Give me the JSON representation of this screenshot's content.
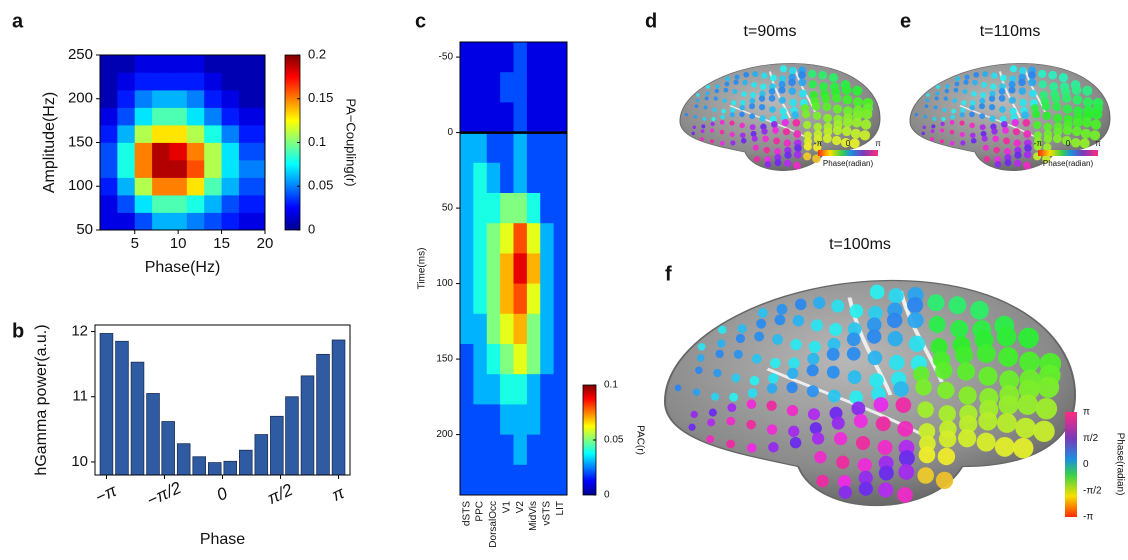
{
  "chart_data": [
    {
      "type": "heatmap",
      "label": "a",
      "xlabel": "Phase(Hz)",
      "ylabel": "Amplitude(Hz)",
      "xlim": [
        1,
        20
      ],
      "ylim": [
        50,
        250
      ],
      "xticks": [
        5,
        10,
        15,
        20
      ],
      "yticks": [
        50,
        100,
        150,
        200,
        250
      ],
      "xbins": [
        1,
        3,
        5,
        7,
        9,
        11,
        13,
        15,
        17,
        20
      ],
      "ybins": [
        50,
        70,
        90,
        110,
        130,
        150,
        170,
        190,
        210,
        230,
        250
      ],
      "values": [
        [
          0.02,
          0.02,
          0.04,
          0.06,
          0.06,
          0.05,
          0.04,
          0.03,
          0.02
        ],
        [
          0.02,
          0.04,
          0.07,
          0.09,
          0.09,
          0.08,
          0.06,
          0.04,
          0.03
        ],
        [
          0.03,
          0.06,
          0.11,
          0.15,
          0.15,
          0.13,
          0.09,
          0.06,
          0.04
        ],
        [
          0.04,
          0.08,
          0.15,
          0.19,
          0.19,
          0.16,
          0.11,
          0.07,
          0.05
        ],
        [
          0.04,
          0.08,
          0.15,
          0.19,
          0.18,
          0.15,
          0.11,
          0.07,
          0.04
        ],
        [
          0.03,
          0.06,
          0.11,
          0.13,
          0.13,
          0.11,
          0.08,
          0.05,
          0.03
        ],
        [
          0.02,
          0.04,
          0.07,
          0.09,
          0.09,
          0.07,
          0.05,
          0.03,
          0.02
        ],
        [
          0.01,
          0.03,
          0.05,
          0.06,
          0.06,
          0.05,
          0.03,
          0.02,
          0.01
        ],
        [
          0.01,
          0.02,
          0.03,
          0.03,
          0.03,
          0.03,
          0.02,
          0.01,
          0.01
        ],
        [
          0.01,
          0.01,
          0.02,
          0.02,
          0.02,
          0.02,
          0.01,
          0.01,
          0.01
        ]
      ],
      "colorbar": {
        "label": "PA−Coupling(r)",
        "lim": [
          0,
          0.2
        ],
        "ticks": [
          0,
          0.05,
          0.1,
          0.15,
          0.2
        ]
      }
    },
    {
      "type": "bar",
      "label": "b",
      "xlabel": "Phase",
      "ylabel": "hGamma power(a.u.)",
      "color": "#2f5ba3",
      "x": [
        -3.14,
        -2.72,
        -2.3,
        -1.88,
        -1.47,
        -1.05,
        -0.63,
        -0.21,
        0.21,
        0.63,
        1.05,
        1.47,
        1.88,
        2.3,
        2.72,
        3.14
      ],
      "values": [
        11.97,
        11.85,
        11.53,
        11.05,
        10.62,
        10.28,
        10.08,
        9.99,
        10.01,
        10.18,
        10.42,
        10.7,
        11.0,
        11.32,
        11.65,
        11.87
      ],
      "xlim": [
        -3.45,
        3.45
      ],
      "ylim": [
        9.8,
        12.1
      ],
      "yticks": [
        10,
        11,
        12
      ],
      "xticks": [
        {
          "value": -3.14,
          "label": "−π"
        },
        {
          "value": -1.57,
          "label": "−π/2"
        },
        {
          "value": 0,
          "label": "0"
        },
        {
          "value": 1.57,
          "label": "π/2"
        },
        {
          "value": 3.14,
          "label": "π"
        }
      ]
    },
    {
      "type": "heatmap",
      "label": "c",
      "ylabel": "Time(ms)",
      "yaxis_reversed": true,
      "categories": [
        "dSTS",
        "PPC",
        "DorsalOcc",
        "V1",
        "V2",
        "MidVis",
        "vSTS",
        "LIT"
      ],
      "ylim": [
        -60,
        240
      ],
      "yticks": [
        -50,
        0,
        50,
        100,
        150,
        200
      ],
      "ybins": [
        -60,
        -40,
        -20,
        0,
        20,
        40,
        60,
        80,
        100,
        120,
        140,
        160,
        180,
        200,
        220,
        240
      ],
      "values": [
        [
          0.01,
          0.01,
          0.01,
          0.01,
          0.02,
          0.01,
          0.01,
          0.01
        ],
        [
          0.01,
          0.01,
          0.01,
          0.02,
          0.02,
          0.01,
          0.01,
          0.01
        ],
        [
          0.01,
          0.01,
          0.01,
          0.01,
          0.02,
          0.01,
          0.01,
          0.01
        ],
        [
          0.03,
          0.03,
          0.02,
          0.02,
          0.03,
          0.02,
          0.02,
          0.02
        ],
        [
          0.03,
          0.04,
          0.03,
          0.02,
          0.03,
          0.02,
          0.02,
          0.02
        ],
        [
          0.03,
          0.04,
          0.04,
          0.05,
          0.05,
          0.04,
          0.02,
          0.02
        ],
        [
          0.03,
          0.04,
          0.05,
          0.06,
          0.08,
          0.06,
          0.03,
          0.02
        ],
        [
          0.03,
          0.04,
          0.05,
          0.07,
          0.09,
          0.07,
          0.03,
          0.02
        ],
        [
          0.03,
          0.04,
          0.05,
          0.07,
          0.08,
          0.06,
          0.03,
          0.02
        ],
        [
          0.03,
          0.03,
          0.05,
          0.06,
          0.07,
          0.05,
          0.03,
          0.02
        ],
        [
          0.02,
          0.03,
          0.04,
          0.05,
          0.06,
          0.05,
          0.03,
          0.02
        ],
        [
          0.02,
          0.03,
          0.03,
          0.04,
          0.04,
          0.03,
          0.02,
          0.02
        ],
        [
          0.02,
          0.02,
          0.02,
          0.03,
          0.03,
          0.03,
          0.02,
          0.02
        ],
        [
          0.02,
          0.02,
          0.02,
          0.02,
          0.03,
          0.02,
          0.02,
          0.02
        ],
        [
          0.02,
          0.02,
          0.02,
          0.02,
          0.02,
          0.02,
          0.02,
          0.02
        ]
      ],
      "colorbar": {
        "label": "PAC(r)",
        "lim": [
          0,
          0.1
        ],
        "ticks": [
          0,
          0.05,
          0.1
        ]
      }
    }
  ],
  "brain_maps": [
    {
      "label": "d",
      "title": "t=90ms",
      "colorbar": {
        "ticks": [
          "-π",
          "0",
          "π"
        ],
        "label": "Phase(radian)"
      }
    },
    {
      "label": "e",
      "title": "t=110ms",
      "colorbar": {
        "ticks": [
          "-π",
          "0",
          "π"
        ],
        "label": "Phase(radian)"
      }
    },
    {
      "label": "f",
      "title": "t=100ms",
      "colorbar": {
        "ticks": [
          "π",
          "π/2",
          "0",
          "-π/2",
          "-π"
        ],
        "label": "Phase(radian)"
      }
    }
  ]
}
